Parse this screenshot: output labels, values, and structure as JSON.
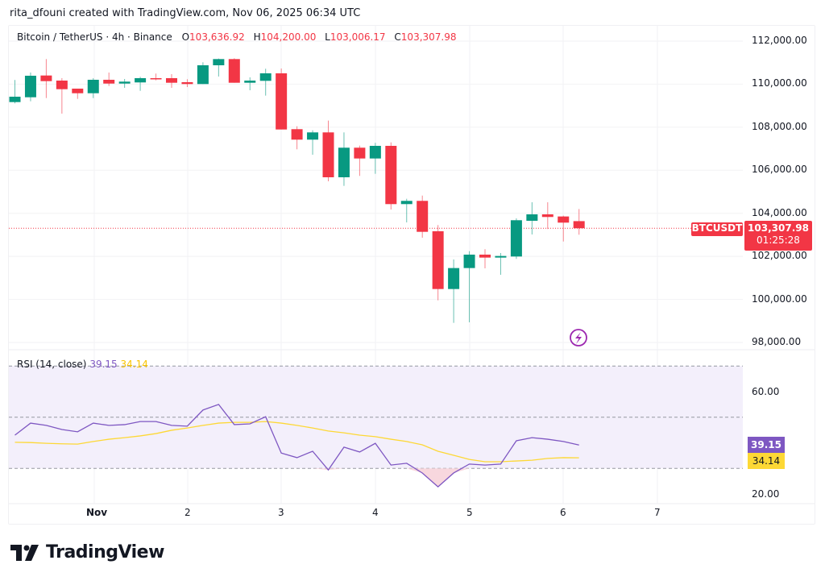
{
  "credit": "rita_dfouni created with TradingView.com, Nov 06, 2025 06:34 UTC",
  "legend": {
    "symbol": "Bitcoin / TetherUS · 4h · Binance",
    "o_label": "O",
    "o": "103,636.92",
    "h_label": "H",
    "h": "104,200.00",
    "l_label": "L",
    "l": "103,006.17",
    "c_label": "C",
    "c": "103,307.98"
  },
  "price_tag": {
    "symbol": "BTCUSDT",
    "price": "103,307.98",
    "countdown": "01:25:28"
  },
  "rsi": {
    "label": "RSI (14, close)",
    "value": "39.15",
    "ma_value": "34.14",
    "axis_ticks": [
      "60.00",
      "20.00"
    ]
  },
  "logo_text": "TradingView",
  "icons": {
    "alert": "lightning-icon",
    "logo": "tradingview-logo-icon"
  },
  "colors": {
    "up": "#089981",
    "down": "#f23645",
    "rsi": "#7e57c2",
    "rsi_ma": "#fdd835",
    "rsi_band": "#f3effb"
  },
  "chart_data": [
    {
      "type": "candlestick",
      "title": "Bitcoin / TetherUS · 4h · Binance",
      "x_ticks": [
        "Nov",
        "2",
        "3",
        "4",
        "5",
        "6",
        "7"
      ],
      "y_ticks": [
        "112,000.00",
        "110,000.00",
        "108,000.00",
        "106,000.00",
        "104,000.00",
        "102,000.00",
        "100,000.00",
        "98,000.00"
      ],
      "ylim": [
        98000,
        112000
      ],
      "grid": true,
      "ohlc": [
        [
          109167,
          110192,
          109107,
          109417
        ],
        [
          109391,
          110540,
          109204,
          110391
        ],
        [
          110402,
          111165,
          109354,
          110140
        ],
        [
          110166,
          110278,
          108631,
          109766
        ],
        [
          109792,
          109792,
          109316,
          109578
        ],
        [
          109578,
          110278,
          109354,
          110203
        ],
        [
          110203,
          110540,
          109915,
          110027
        ],
        [
          110027,
          110241,
          109829,
          110117
        ],
        [
          110080,
          110342,
          109690,
          110278
        ],
        [
          110278,
          110492,
          110177,
          110230
        ],
        [
          110278,
          110465,
          109829,
          110065
        ],
        [
          110091,
          110230,
          109866,
          110005
        ],
        [
          110005,
          111016,
          110005,
          110877
        ],
        [
          110877,
          111190,
          110354,
          111165
        ],
        [
          111165,
          111203,
          110065,
          110065
        ],
        [
          110065,
          110316,
          109717,
          110166
        ],
        [
          110154,
          110716,
          109467,
          110503
        ],
        [
          110503,
          110727,
          107894,
          107894
        ],
        [
          107909,
          108044,
          106973,
          107422
        ],
        [
          107422,
          107857,
          106722,
          107759
        ],
        [
          107759,
          108306,
          105487,
          105674
        ],
        [
          105674,
          107759,
          105274,
          107048
        ],
        [
          107048,
          107145,
          105738,
          106547
        ],
        [
          106547,
          107273,
          105835,
          107134
        ],
        [
          107134,
          107295,
          104177,
          104428
        ],
        [
          104428,
          104675,
          103578,
          104578
        ],
        [
          104578,
          104824,
          102867,
          103140
        ],
        [
          103167,
          103455,
          99959,
          100483
        ],
        [
          100483,
          101857,
          98911,
          101457
        ],
        [
          101457,
          102241,
          98937,
          102081
        ],
        [
          102081,
          102332,
          101445,
          101943
        ],
        [
          101943,
          102156,
          101145,
          102018
        ],
        [
          101993,
          103765,
          101883,
          103679
        ],
        [
          103653,
          104514,
          103017,
          103953
        ],
        [
          103953,
          104514,
          103270,
          103829
        ],
        [
          103853,
          103890,
          102691,
          103567
        ],
        [
          103636.92,
          104200,
          103006.17,
          103307.98
        ]
      ],
      "last_price": 103307.98
    },
    {
      "type": "line",
      "title": "RSI (14, close)",
      "ylim": [
        16,
        74
      ],
      "bands": [
        30,
        50,
        70
      ],
      "y_ticks": [
        "60.00",
        "20.00"
      ],
      "series": [
        {
          "name": "RSI",
          "values": [
            43.0,
            47.7,
            46.8,
            45.2,
            44.3,
            47.7,
            46.8,
            47.1,
            48.3,
            48.3,
            46.8,
            46.5,
            52.8,
            55.0,
            47.1,
            47.4,
            50.2,
            36.0,
            34.2,
            36.7,
            29.4,
            38.3,
            36.4,
            39.8,
            31.3,
            32.0,
            28.2,
            22.8,
            28.2,
            31.7,
            31.3,
            31.7,
            40.8,
            42.0,
            41.4,
            40.5,
            39.15
          ]
        },
        {
          "name": "RSI MA",
          "values": [
            40.2,
            40.1,
            39.8,
            39.6,
            39.5,
            40.5,
            41.4,
            42.0,
            42.7,
            43.6,
            44.9,
            45.8,
            46.8,
            47.7,
            48.0,
            48.0,
            48.3,
            47.7,
            46.8,
            45.8,
            44.6,
            43.9,
            43.0,
            42.4,
            41.4,
            40.5,
            39.2,
            36.7,
            35.1,
            33.5,
            32.6,
            32.6,
            32.9,
            33.2,
            33.9,
            34.2,
            34.14
          ]
        }
      ]
    }
  ]
}
